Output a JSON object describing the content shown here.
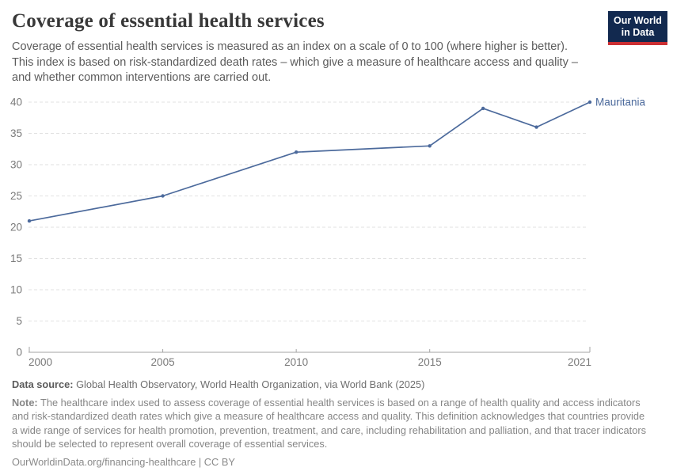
{
  "header": {
    "title": "Coverage of essential health services",
    "subtitle_lines": [
      "Coverage of essential health services is measured as an index on a scale of 0 to 100 (where higher is better).",
      "This index is based on risk-standardized death rates – which give a measure of healthcare access and quality –",
      "and whether common interventions are carried out."
    ],
    "logo": {
      "line1": "Our World",
      "line2": "in Data"
    }
  },
  "chart_data": {
    "type": "line",
    "title": "Coverage of essential health services",
    "entity": "Mauritania",
    "x": [
      2000,
      2005,
      2010,
      2015,
      2017,
      2019,
      2021
    ],
    "series": [
      {
        "name": "Mauritania",
        "values": [
          21,
          25,
          32,
          33,
          39,
          36,
          40
        ],
        "color": "#4c6a9c"
      }
    ],
    "xlim": [
      2000,
      2021
    ],
    "ylim": [
      0,
      40
    ],
    "yticks": [
      0,
      5,
      10,
      15,
      20,
      25,
      30,
      35,
      40
    ],
    "xticks": [
      2000,
      2005,
      2010,
      2015,
      2021
    ],
    "xlabel": "",
    "ylabel": "",
    "grid": "horizontal-dashed",
    "legend_position": "end-of-line-label"
  },
  "footer": {
    "data_source_label": "Data source:",
    "data_source_text": "Global Health Observatory, World Health Organization, via World Bank (2025)",
    "note_label": "Note:",
    "note_lines": [
      "The healthcare index used to assess coverage of essential health services is based on a range of health quality and access indicators",
      "and risk-standardized death rates which give a measure of healthcare access and quality. This definition acknowledges that countries provide",
      "a wide range of services for health promotion, prevention, treatment, and care, including rehabilitation and palliation, and that tracer indicators",
      "should be selected to represent overall coverage of essential services."
    ],
    "citation": "OurWorldinData.org/financing-healthcare | CC BY"
  },
  "colors": {
    "line": "#4c6a9c",
    "grid": "#e2e2e2",
    "axis": "#a3a3a3",
    "tick_label": "#7a7a7a",
    "logo_bg": "#12294f",
    "logo_accent": "#cb2f33"
  }
}
